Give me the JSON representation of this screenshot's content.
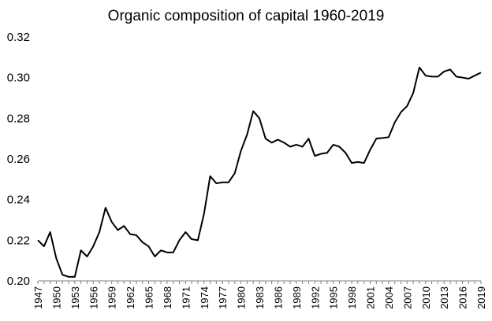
{
  "chart_data": {
    "type": "line",
    "title": "Organic composition of capital 1960-2019",
    "xlabel": "",
    "ylabel": "",
    "ylim": [
      0.2,
      0.32
    ],
    "xlim": [
      1947,
      2019
    ],
    "grid": false,
    "legend": "none",
    "yticks": [
      "0.20",
      "0.22",
      "0.24",
      "0.26",
      "0.28",
      "0.30",
      "0.32"
    ],
    "xticks": [
      "1947",
      "1950",
      "1953",
      "1956",
      "1959",
      "1962",
      "1965",
      "1968",
      "1971",
      "1974",
      "1977",
      "1980",
      "1983",
      "1986",
      "1989",
      "1992",
      "1995",
      "1998",
      "2001",
      "2004",
      "2007",
      "2010",
      "2013",
      "2016",
      "2019"
    ],
    "series": [
      {
        "name": "Organic composition of capital",
        "color": "#000000",
        "x": [
          1947,
          1948,
          1949,
          1950,
          1951,
          1952,
          1953,
          1954,
          1955,
          1956,
          1957,
          1958,
          1959,
          1960,
          1961,
          1962,
          1963,
          1964,
          1965,
          1966,
          1967,
          1968,
          1969,
          1970,
          1971,
          1972,
          1973,
          1974,
          1975,
          1976,
          1977,
          1978,
          1979,
          1980,
          1981,
          1982,
          1983,
          1984,
          1985,
          1986,
          1987,
          1988,
          1989,
          1990,
          1991,
          1992,
          1993,
          1994,
          1995,
          1996,
          1997,
          1998,
          1999,
          2000,
          2001,
          2002,
          2003,
          2004,
          2005,
          2006,
          2007,
          2008,
          2009,
          2010,
          2011,
          2012,
          2013,
          2014,
          2015,
          2016,
          2017,
          2018,
          2019
        ],
        "values": [
          0.22,
          0.217,
          0.224,
          0.211,
          0.203,
          0.202,
          0.202,
          0.215,
          0.212,
          0.217,
          0.224,
          0.236,
          0.229,
          0.225,
          0.227,
          0.223,
          0.2225,
          0.219,
          0.217,
          0.212,
          0.215,
          0.214,
          0.214,
          0.22,
          0.224,
          0.2205,
          0.22,
          0.233,
          0.2515,
          0.248,
          0.2485,
          0.2485,
          0.253,
          0.264,
          0.272,
          0.2835,
          0.28,
          0.27,
          0.268,
          0.2695,
          0.268,
          0.266,
          0.267,
          0.266,
          0.27,
          0.2615,
          0.2625,
          0.263,
          0.267,
          0.266,
          0.263,
          0.258,
          0.2585,
          0.258,
          0.2645,
          0.27,
          0.2703,
          0.2707,
          0.278,
          0.283,
          0.286,
          0.2925,
          0.305,
          0.301,
          0.3005,
          0.3005,
          0.303,
          0.304,
          0.3005,
          0.3,
          0.2995,
          0.301,
          0.3025
        ]
      }
    ]
  }
}
